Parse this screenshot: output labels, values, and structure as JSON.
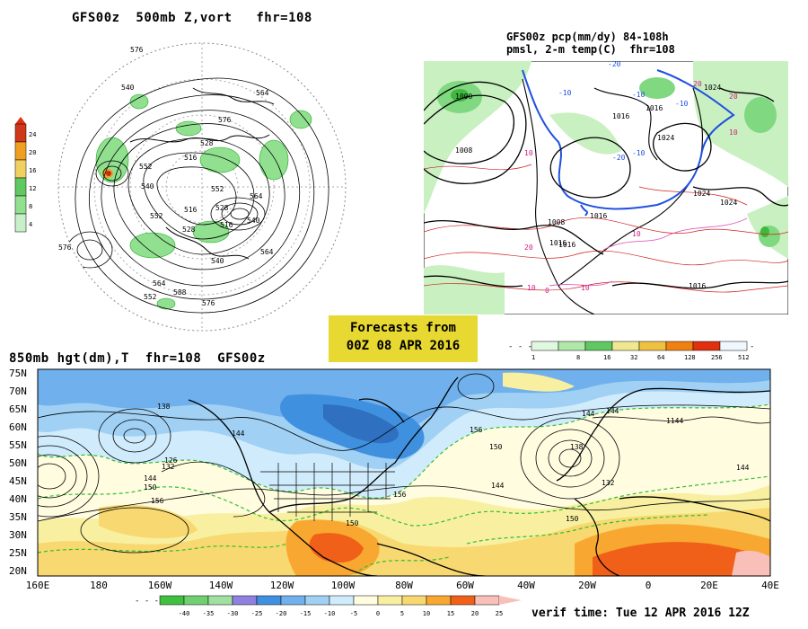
{
  "panel_500mb": {
    "title": "GFS00z  500mb Z,vort   fhr=108",
    "contour_labels": [
      "576",
      "564",
      "540",
      "576",
      "552",
      "528",
      "516",
      "540",
      "552",
      "528",
      "516",
      "552",
      "540",
      "564",
      "528",
      "516",
      "564",
      "540",
      "576",
      "588",
      "564",
      "576",
      "552"
    ],
    "colorbar_ticks": [
      "24",
      "20",
      "16",
      "12",
      "8",
      "4"
    ],
    "colorbar_colors": [
      "#d0381a",
      "#f0a020",
      "#f0d060",
      "#60c860",
      "#90e090",
      "#c8f0c8"
    ]
  },
  "panel_pcp": {
    "title_line1": "GFS00z pcp(mm/dy) 84-108h",
    "title_line2": "pmsl, 2-m temp(C)  fhr=108",
    "isobar_labels": [
      "1008",
      "1000",
      "1016",
      "1024",
      "1016",
      "1024",
      "1016",
      "1016",
      "1008",
      "1016",
      "1024",
      "1024",
      "1016"
    ],
    "temp_labels": [
      "-20",
      "-10",
      "-20",
      "10",
      "-10",
      "20",
      "-10",
      "10",
      "20",
      "10",
      "10",
      "10",
      "0",
      "20",
      "-10"
    ],
    "colorbar_ticks": [
      "1",
      "8",
      "16",
      "32",
      "64",
      "128",
      "256",
      "512"
    ],
    "colorbar_colors": [
      "#e0f8e0",
      "#b0e8a8",
      "#60c860",
      "#f0e890",
      "#f0c040",
      "#f08010",
      "#e03010",
      "#f0f8ff"
    ]
  },
  "banner": {
    "line1": "Forecasts from",
    "line2": "00Z 08 APR 2016"
  },
  "panel_850mb": {
    "title": "850mb hgt(dm),T  fhr=108  GFS00z",
    "lat_labels": [
      "75N",
      "70N",
      "65N",
      "60N",
      "55N",
      "50N",
      "45N",
      "40N",
      "35N",
      "30N",
      "25N",
      "20N"
    ],
    "lon_labels": [
      "160E",
      "180",
      "160W",
      "140W",
      "120W",
      "100W",
      "80W",
      "60W",
      "40W",
      "20W",
      "0",
      "20E",
      "40E"
    ],
    "contour_labels": [
      "138",
      "126",
      "132",
      "144",
      "150",
      "156",
      "144",
      "150",
      "156",
      "144",
      "156",
      "150",
      "138",
      "132",
      "144",
      "150",
      "144",
      "1144",
      "144"
    ],
    "colorbar_ticks": [
      "-40",
      "-35",
      "-30",
      "-25",
      "-20",
      "-15",
      "-10",
      "-5",
      "0",
      "5",
      "10",
      "15",
      "20",
      "25"
    ],
    "colorbar_colors": [
      "#40c040",
      "#70d070",
      "#a0e0a0",
      "#9080e0",
      "#4090e0",
      "#70b0ec",
      "#a0d0f4",
      "#d0ecfc",
      "#fffce0",
      "#f8f0a0",
      "#f8d870",
      "#f8a830",
      "#f06018",
      "#f8c0b8"
    ]
  },
  "verif_time": "verif time: Tue 12 APR 2016 12Z"
}
